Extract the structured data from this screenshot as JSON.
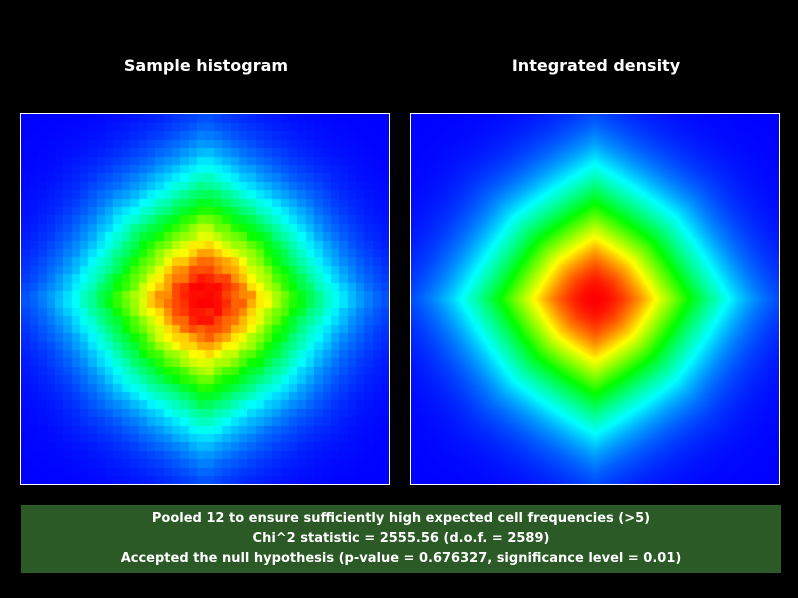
{
  "chart_data": [
    {
      "type": "heatmap",
      "title": "Sample histogram",
      "grid": false,
      "bins": [
        44,
        44
      ],
      "peak": "center",
      "colormap": [
        "#0000ff",
        "#00ffff",
        "#00ff00",
        "#ffff00",
        "#ff0000"
      ]
    },
    {
      "type": "heatmap",
      "title": "Integrated density",
      "grid": false,
      "peak": "center",
      "colormap": [
        "#0000ff",
        "#00ffff",
        "#00ff00",
        "#ffff00",
        "#ff0000"
      ]
    }
  ],
  "result": {
    "line1": "Pooled 12 to ensure sufficiently high expected cell frequencies (>5)",
    "line2": "Chi^2 statistic = 2555.56 (d.o.f. = 2589)",
    "line3": "Accepted the null hypothesis (p-value = 0.676327, significance level = 0.01)"
  },
  "colors": {
    "background": "#000000",
    "result_box": "#2b5a26",
    "text": "#ffffff"
  }
}
